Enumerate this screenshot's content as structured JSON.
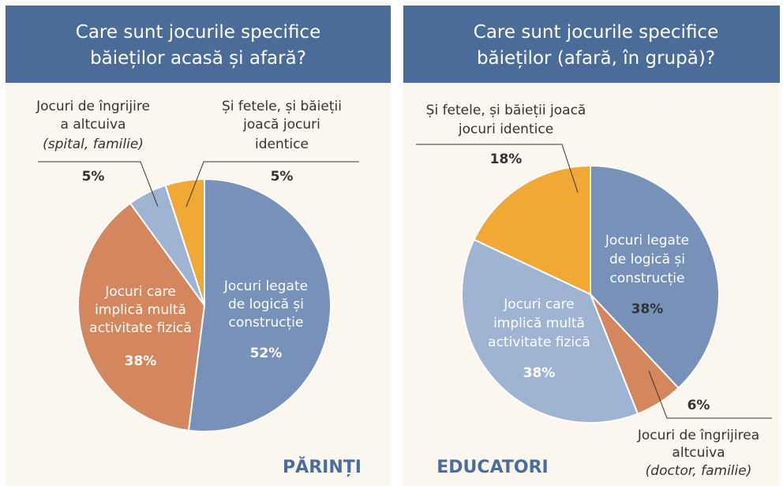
{
  "chart_data": [
    {
      "type": "pie",
      "title": "Care sunt jocurile specifice\nbăieților acasă și afară?",
      "group": "PĂRINȚI",
      "categories": [
        "Jocuri legate\nde logică și\nconstrucție",
        "Jocuri care\nimplică multă\nactivitate fizică",
        "Jocuri de îngrijire\na altcuiva",
        "Și fetele, și băieții\njoacă jocuri\nidentice"
      ],
      "category_notes": [
        null,
        null,
        "(spital, familie)",
        null
      ],
      "values": [
        52,
        38,
        5,
        5
      ],
      "value_labels": [
        "52%",
        "38%",
        "5%",
        "5%"
      ],
      "colors": [
        "#7791b9",
        "#d4875f",
        "#9fb4d2",
        "#f2a835"
      ]
    },
    {
      "type": "pie",
      "title": "Care sunt jocurile specifice\nbăieților (afară, în grupă)?",
      "group": "EDUCATORI",
      "categories": [
        "Jocuri legate\nde logică și\nconstrucție",
        "Jocuri de îngrijirea\naltcuiva",
        "Jocuri care\nimplică multă\nactivitate fizică",
        "Și fetele, și băieții joacă\njocuri identice"
      ],
      "category_notes": [
        null,
        "(doctor, familie)",
        null,
        null
      ],
      "values": [
        38,
        6,
        38,
        18
      ],
      "value_labels": [
        "38%",
        "6%",
        "38%",
        "18%"
      ],
      "colors": [
        "#7791b9",
        "#d4875f",
        "#9fb4d2",
        "#f2a835"
      ]
    }
  ]
}
